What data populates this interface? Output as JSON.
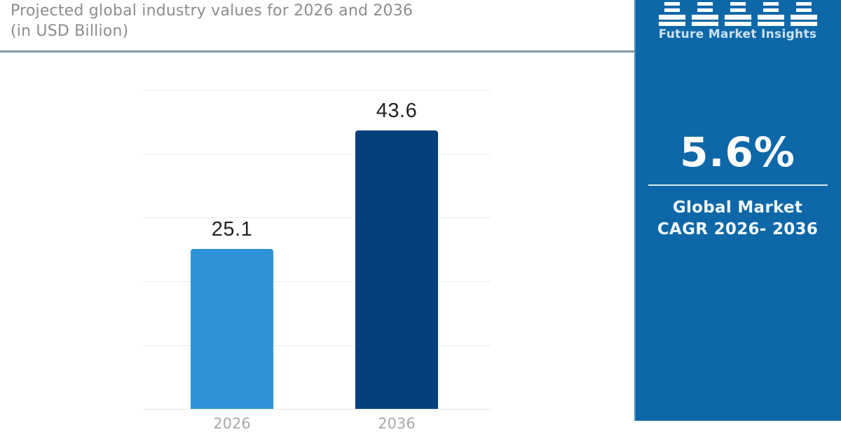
{
  "header": {
    "title_line1": "Projected global industry values for 2026 and 2036",
    "title_line2": "(in USD Billion)"
  },
  "chart_data": {
    "type": "bar",
    "title": "Projected global industry values for 2026 and 2036 (in USD Billion)",
    "categories": [
      "2026",
      "2036"
    ],
    "values": [
      25.1,
      43.6
    ],
    "value_labels": [
      "25.1",
      "43.6"
    ],
    "bar_colors": [
      "#2e93d8",
      "#053f7c"
    ],
    "xlabel": "",
    "ylabel": "",
    "ylim": [
      0,
      50
    ],
    "grid_step": 10,
    "grid": "horizontal, no y tick labels, x labels cropped at bottom edge",
    "legend": "none"
  },
  "sidebar": {
    "brand": "Future Market Insights",
    "logo": "five-striped-pillars-icon",
    "cagr_value": "5.6%",
    "cagr_label_line1": "Global Market",
    "cagr_label_line2": "CAGR 2026- 2036",
    "background_color": "#0e68a8"
  },
  "colors": {
    "bar_2026": "#2e93d8",
    "bar_2036": "#053f7c",
    "panel_blue": "#0e68a8",
    "title_gray": "#8d8d8d",
    "separator_slate": "#7e97a8"
  }
}
